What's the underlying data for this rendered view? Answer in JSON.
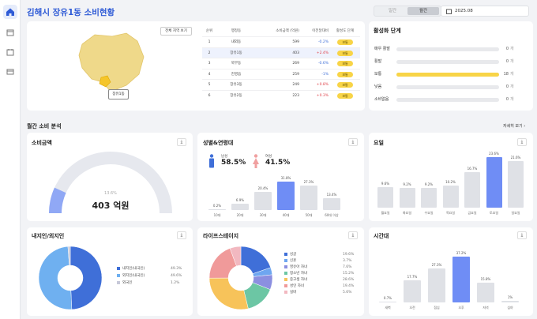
{
  "header": {
    "title": "김해시 장유1동 소비현황",
    "tabs": [
      "일간",
      "월간"
    ],
    "active_tab": "월간",
    "date": "2025.08"
  },
  "sidebar": {
    "icons": [
      "home-icon",
      "store-icon",
      "calendar-icon",
      "card-icon"
    ]
  },
  "map": {
    "view_all_button": "전체 지역 보기",
    "tooltip": "장유1동"
  },
  "ranking": {
    "headers": [
      "순위",
      "행정동",
      "소비금액 (억원)",
      "이전달대비",
      "활성도 단계"
    ],
    "rows": [
      {
        "rank": "1",
        "dong": "내외동",
        "amount": "599",
        "change": "-0.2%",
        "level": "보통"
      },
      {
        "rank": "2",
        "dong": "장유1동",
        "amount": "403",
        "change": "+2.4%",
        "level": "보통"
      },
      {
        "rank": "3",
        "dong": "북부동",
        "amount": "269",
        "change": "-0.6%",
        "level": "보통"
      },
      {
        "rank": "4",
        "dong": "진영읍",
        "amount": "259",
        "change": "-1%",
        "level": "보통"
      },
      {
        "rank": "5",
        "dong": "장유3동",
        "amount": "249",
        "change": "+0.8%",
        "level": "보통"
      },
      {
        "rank": "6",
        "dong": "장유2동",
        "amount": "223",
        "change": "+0.3%",
        "level": "보통"
      }
    ]
  },
  "activity": {
    "title": "활성화 단계",
    "rows": [
      {
        "label": "매우 활발",
        "value": "0",
        "fraction": 0
      },
      {
        "label": "활발",
        "value": "0",
        "fraction": 0
      },
      {
        "label": "보통",
        "value": "18",
        "fraction": 1
      },
      {
        "label": "낮음",
        "value": "0",
        "fraction": 0
      },
      {
        "label": "소비없음",
        "value": "0",
        "fraction": 0
      }
    ],
    "unit": "개"
  },
  "monthly": {
    "title": "월간 소비 분석",
    "detail_link": "자세히 보기"
  },
  "spend": {
    "title": "소비금액",
    "percent": "13.6%",
    "fraction": 0.136,
    "amount": "403 억원"
  },
  "gender_age": {
    "title": "성별&연령대",
    "male_label": "남성",
    "male_value": "58.5%",
    "female_label": "여성",
    "female_value": "41.5%",
    "chart_data": {
      "type": "bar",
      "categories": [
        "10대",
        "20대",
        "30대",
        "40대",
        "50대",
        "60대 이상"
      ],
      "values": [
        0.2,
        6.9,
        20.4,
        31.8,
        27.3,
        13.4
      ],
      "labels": [
        "0.2%",
        "6.9%",
        "20.4%",
        "31.8%",
        "27.3%",
        "13.4%"
      ],
      "highlight": 3
    }
  },
  "weekday": {
    "title": "요일",
    "chart_data": {
      "type": "bar",
      "categories": [
        "월요일",
        "화요일",
        "수요일",
        "목요일",
        "금요일",
        "토요일",
        "일요일"
      ],
      "values": [
        9.6,
        9.2,
        9.2,
        10.2,
        16.7,
        23.6,
        21.6
      ],
      "labels": [
        "9.6%",
        "9.2%",
        "9.2%",
        "10.2%",
        "16.7%",
        "23.6%",
        "21.6%"
      ],
      "highlight": 5
    }
  },
  "residence": {
    "title": "내지인/외지인",
    "chart_data": {
      "type": "pie",
      "labels": [
        "내지인(내국인)",
        "외지인(내국인)",
        "외국인"
      ],
      "values": [
        49.3,
        49.6,
        1.2
      ],
      "value_labels": [
        "49.3%",
        "49.6%",
        "1.2%"
      ],
      "colors": [
        "#3f6fd8",
        "#6fb0f0",
        "#c7c9d9"
      ]
    }
  },
  "lifestage": {
    "title": "라이프스테이지",
    "chart_data": {
      "type": "pie",
      "labels": [
        "싱글",
        "신혼",
        "영유아 자녀",
        "청소년 자녀",
        "중고생 자녀",
        "성인 자녀",
        "실버"
      ],
      "values": [
        19.6,
        3.7,
        7.6,
        15.2,
        28.6,
        19.4,
        5.6
      ],
      "value_labels": [
        "19.6%",
        "3.7%",
        "7.6%",
        "15.2%",
        "28.6%",
        "19.4%",
        "5.6%"
      ],
      "colors": [
        "#3f6fd8",
        "#6ea6f0",
        "#8b8fe0",
        "#6cc6a4",
        "#f7c35a",
        "#f09a9a",
        "#f2b8c0"
      ]
    }
  },
  "time": {
    "title": "시간대",
    "chart_data": {
      "type": "bar",
      "categories": [
        "새벽",
        "오전",
        "점심",
        "오후",
        "저녁",
        "심야"
      ],
      "values": [
        0.7,
        17.7,
        27.3,
        37.2,
        15.8,
        1
      ],
      "labels": [
        "0.7%",
        "17.7%",
        "27.3%",
        "37.2%",
        "15.8%",
        "1%"
      ],
      "highlight": 3
    }
  },
  "colors": {
    "accent": "#2f5bd6",
    "highlight_bar": "#6f8df5",
    "bar": "#dfe1e6",
    "pill": "#f8d447"
  }
}
